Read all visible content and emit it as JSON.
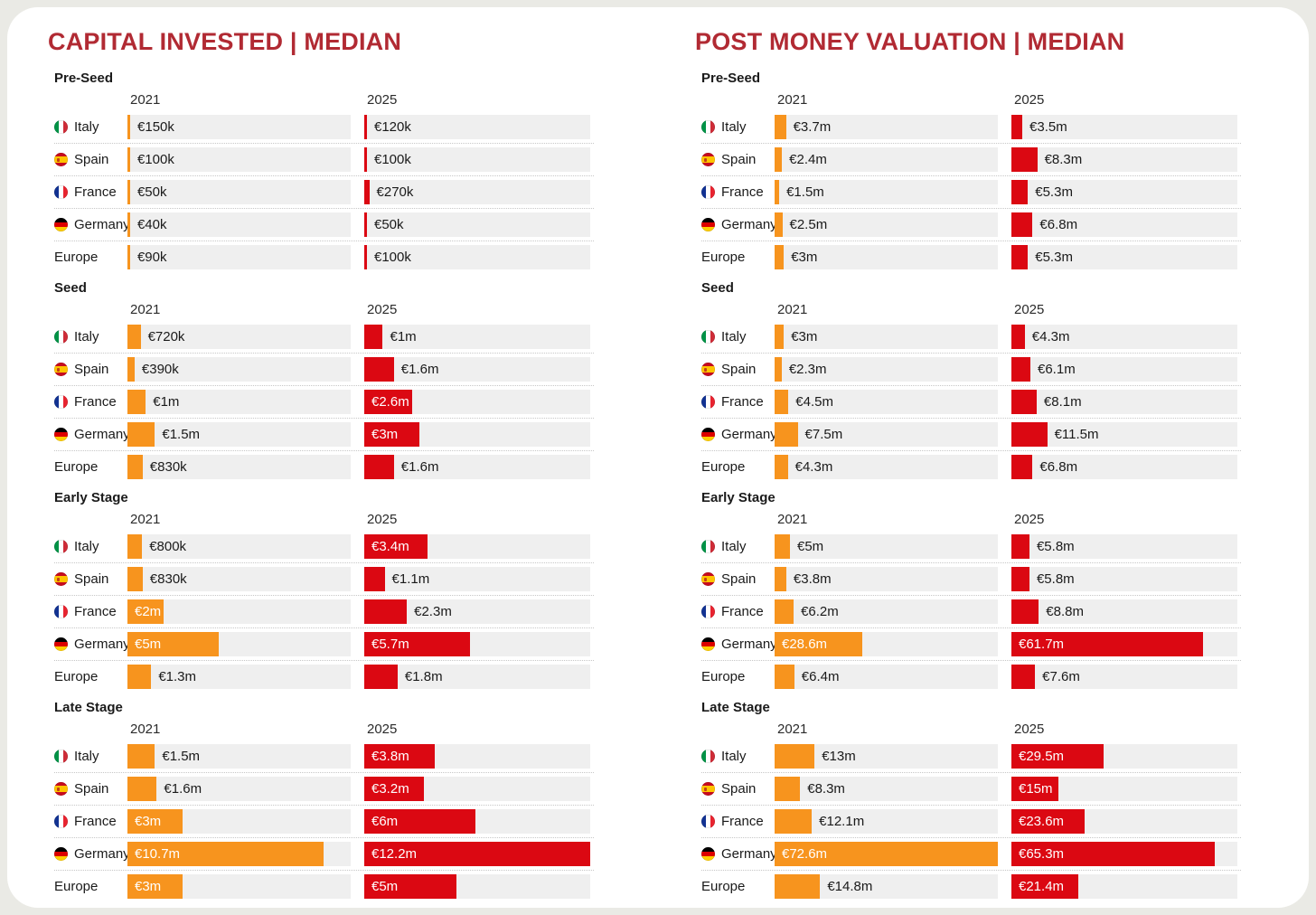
{
  "colors": {
    "accent_title": "#B12A33",
    "bar_2021": "#F7941E",
    "bar_2025": "#DB0812",
    "track": "#EFEFEF",
    "page_bg": "#EAEAE5",
    "card_bg": "#FFFFFF",
    "text": "#1A1A1A"
  },
  "chart_data": [
    {
      "type": "bar",
      "title": "CAPITAL INVESTED | MEDIAN",
      "years": [
        "2021",
        "2025"
      ],
      "axis_max_meur": 12.2,
      "legend_position": "column-headers",
      "grid": false,
      "sections": [
        {
          "name": "Pre-Seed",
          "rows": [
            {
              "country": "Italy",
              "flag": "italy",
              "y2021": {
                "label": "€150k",
                "meur": 0.15,
                "inside": false
              },
              "y2025": {
                "label": "€120k",
                "meur": 0.12,
                "inside": false
              }
            },
            {
              "country": "Spain",
              "flag": "spain",
              "y2021": {
                "label": "€100k",
                "meur": 0.1,
                "inside": false
              },
              "y2025": {
                "label": "€100k",
                "meur": 0.1,
                "inside": false
              }
            },
            {
              "country": "France",
              "flag": "france",
              "y2021": {
                "label": "€50k",
                "meur": 0.05,
                "inside": false
              },
              "y2025": {
                "label": "€270k",
                "meur": 0.27,
                "inside": false
              }
            },
            {
              "country": "Germany",
              "flag": "germany",
              "y2021": {
                "label": "€40k",
                "meur": 0.04,
                "inside": false
              },
              "y2025": {
                "label": "€50k",
                "meur": 0.05,
                "inside": false
              }
            },
            {
              "country": "Europe",
              "flag": null,
              "y2021": {
                "label": "€90k",
                "meur": 0.09,
                "inside": false
              },
              "y2025": {
                "label": "€100k",
                "meur": 0.1,
                "inside": false
              }
            }
          ]
        },
        {
          "name": "Seed",
          "rows": [
            {
              "country": "Italy",
              "flag": "italy",
              "y2021": {
                "label": "€720k",
                "meur": 0.72,
                "inside": false
              },
              "y2025": {
                "label": "€1m",
                "meur": 1.0,
                "inside": false
              }
            },
            {
              "country": "Spain",
              "flag": "spain",
              "y2021": {
                "label": "€390k",
                "meur": 0.39,
                "inside": false
              },
              "y2025": {
                "label": "€1.6m",
                "meur": 1.6,
                "inside": false
              }
            },
            {
              "country": "France",
              "flag": "france",
              "y2021": {
                "label": "€1m",
                "meur": 1.0,
                "inside": false
              },
              "y2025": {
                "label": "€2.6m",
                "meur": 2.6,
                "inside": true
              }
            },
            {
              "country": "Germany",
              "flag": "germany",
              "y2021": {
                "label": "€1.5m",
                "meur": 1.5,
                "inside": false
              },
              "y2025": {
                "label": "€3m",
                "meur": 3.0,
                "inside": true
              }
            },
            {
              "country": "Europe",
              "flag": null,
              "y2021": {
                "label": "€830k",
                "meur": 0.83,
                "inside": false
              },
              "y2025": {
                "label": "€1.6m",
                "meur": 1.6,
                "inside": false
              }
            }
          ]
        },
        {
          "name": "Early Stage",
          "rows": [
            {
              "country": "Italy",
              "flag": "italy",
              "y2021": {
                "label": "€800k",
                "meur": 0.8,
                "inside": false
              },
              "y2025": {
                "label": "€3.4m",
                "meur": 3.4,
                "inside": true
              }
            },
            {
              "country": "Spain",
              "flag": "spain",
              "y2021": {
                "label": "€830k",
                "meur": 0.83,
                "inside": false
              },
              "y2025": {
                "label": "€1.1m",
                "meur": 1.1,
                "inside": false
              }
            },
            {
              "country": "France",
              "flag": "france",
              "y2021": {
                "label": "€2m",
                "meur": 2.0,
                "inside": true
              },
              "y2025": {
                "label": "€2.3m",
                "meur": 2.3,
                "inside": false
              }
            },
            {
              "country": "Germany",
              "flag": "germany",
              "y2021": {
                "label": "€5m",
                "meur": 5.0,
                "inside": true
              },
              "y2025": {
                "label": "€5.7m",
                "meur": 5.7,
                "inside": true
              }
            },
            {
              "country": "Europe",
              "flag": null,
              "y2021": {
                "label": "€1.3m",
                "meur": 1.3,
                "inside": false
              },
              "y2025": {
                "label": "€1.8m",
                "meur": 1.8,
                "inside": false
              }
            }
          ]
        },
        {
          "name": "Late Stage",
          "rows": [
            {
              "country": "Italy",
              "flag": "italy",
              "y2021": {
                "label": "€1.5m",
                "meur": 1.5,
                "inside": false
              },
              "y2025": {
                "label": "€3.8m",
                "meur": 3.8,
                "inside": true
              }
            },
            {
              "country": "Spain",
              "flag": "spain",
              "y2021": {
                "label": "€1.6m",
                "meur": 1.6,
                "inside": false
              },
              "y2025": {
                "label": "€3.2m",
                "meur": 3.2,
                "inside": true
              }
            },
            {
              "country": "France",
              "flag": "france",
              "y2021": {
                "label": "€3m",
                "meur": 3.0,
                "inside": true
              },
              "y2025": {
                "label": "€6m",
                "meur": 6.0,
                "inside": true
              }
            },
            {
              "country": "Germany",
              "flag": "germany",
              "y2021": {
                "label": "€10.7m",
                "meur": 10.7,
                "inside": true
              },
              "y2025": {
                "label": "€12.2m",
                "meur": 12.2,
                "inside": true
              }
            },
            {
              "country": "Europe",
              "flag": null,
              "y2021": {
                "label": "€3m",
                "meur": 3.0,
                "inside": true
              },
              "y2025": {
                "label": "€5m",
                "meur": 5.0,
                "inside": true
              }
            }
          ]
        }
      ]
    },
    {
      "type": "bar",
      "title": "POST MONEY VALUATION | MEDIAN",
      "years": [
        "2021",
        "2025"
      ],
      "axis_max_meur": 72.6,
      "legend_position": "column-headers",
      "grid": false,
      "sections": [
        {
          "name": "Pre-Seed",
          "rows": [
            {
              "country": "Italy",
              "flag": "italy",
              "y2021": {
                "label": "€3.7m",
                "meur": 3.7,
                "inside": false
              },
              "y2025": {
                "label": "€3.5m",
                "meur": 3.5,
                "inside": false
              }
            },
            {
              "country": "Spain",
              "flag": "spain",
              "y2021": {
                "label": "€2.4m",
                "meur": 2.4,
                "inside": false
              },
              "y2025": {
                "label": "€8.3m",
                "meur": 8.3,
                "inside": false
              }
            },
            {
              "country": "France",
              "flag": "france",
              "y2021": {
                "label": "€1.5m",
                "meur": 1.5,
                "inside": false
              },
              "y2025": {
                "label": "€5.3m",
                "meur": 5.3,
                "inside": false
              }
            },
            {
              "country": "Germany",
              "flag": "germany",
              "y2021": {
                "label": "€2.5m",
                "meur": 2.5,
                "inside": false
              },
              "y2025": {
                "label": "€6.8m",
                "meur": 6.8,
                "inside": false
              }
            },
            {
              "country": "Europe",
              "flag": null,
              "y2021": {
                "label": "€3m",
                "meur": 3.0,
                "inside": false
              },
              "y2025": {
                "label": "€5.3m",
                "meur": 5.3,
                "inside": false
              }
            }
          ]
        },
        {
          "name": "Seed",
          "rows": [
            {
              "country": "Italy",
              "flag": "italy",
              "y2021": {
                "label": "€3m",
                "meur": 3.0,
                "inside": false
              },
              "y2025": {
                "label": "€4.3m",
                "meur": 4.3,
                "inside": false
              }
            },
            {
              "country": "Spain",
              "flag": "spain",
              "y2021": {
                "label": "€2.3m",
                "meur": 2.3,
                "inside": false
              },
              "y2025": {
                "label": "€6.1m",
                "meur": 6.1,
                "inside": false
              }
            },
            {
              "country": "France",
              "flag": "france",
              "y2021": {
                "label": "€4.5m",
                "meur": 4.5,
                "inside": false
              },
              "y2025": {
                "label": "€8.1m",
                "meur": 8.1,
                "inside": false
              }
            },
            {
              "country": "Germany",
              "flag": "germany",
              "y2021": {
                "label": "€7.5m",
                "meur": 7.5,
                "inside": false
              },
              "y2025": {
                "label": "€11.5m",
                "meur": 11.5,
                "inside": false
              }
            },
            {
              "country": "Europe",
              "flag": null,
              "y2021": {
                "label": "€4.3m",
                "meur": 4.3,
                "inside": false
              },
              "y2025": {
                "label": "€6.8m",
                "meur": 6.8,
                "inside": false
              }
            }
          ]
        },
        {
          "name": "Early Stage",
          "rows": [
            {
              "country": "Italy",
              "flag": "italy",
              "y2021": {
                "label": "€5m",
                "meur": 5.0,
                "inside": false
              },
              "y2025": {
                "label": "€5.8m",
                "meur": 5.8,
                "inside": false
              }
            },
            {
              "country": "Spain",
              "flag": "spain",
              "y2021": {
                "label": "€3.8m",
                "meur": 3.8,
                "inside": false
              },
              "y2025": {
                "label": "€5.8m",
                "meur": 5.8,
                "inside": false
              }
            },
            {
              "country": "France",
              "flag": "france",
              "y2021": {
                "label": "€6.2m",
                "meur": 6.2,
                "inside": false
              },
              "y2025": {
                "label": "€8.8m",
                "meur": 8.8,
                "inside": false
              }
            },
            {
              "country": "Germany",
              "flag": "germany",
              "y2021": {
                "label": "€28.6m",
                "meur": 28.6,
                "inside": true
              },
              "y2025": {
                "label": "€61.7m",
                "meur": 61.7,
                "inside": true
              }
            },
            {
              "country": "Europe",
              "flag": null,
              "y2021": {
                "label": "€6.4m",
                "meur": 6.4,
                "inside": false
              },
              "y2025": {
                "label": "€7.6m",
                "meur": 7.6,
                "inside": false
              }
            }
          ]
        },
        {
          "name": "Late Stage",
          "rows": [
            {
              "country": "Italy",
              "flag": "italy",
              "y2021": {
                "label": "€13m",
                "meur": 13.0,
                "inside": false
              },
              "y2025": {
                "label": "€29.5m",
                "meur": 29.5,
                "inside": true
              }
            },
            {
              "country": "Spain",
              "flag": "spain",
              "y2021": {
                "label": "€8.3m",
                "meur": 8.3,
                "inside": false
              },
              "y2025": {
                "label": "€15m",
                "meur": 15.0,
                "inside": true
              }
            },
            {
              "country": "France",
              "flag": "france",
              "y2021": {
                "label": "€12.1m",
                "meur": 12.1,
                "inside": false
              },
              "y2025": {
                "label": "€23.6m",
                "meur": 23.6,
                "inside": true
              }
            },
            {
              "country": "Germany",
              "flag": "germany",
              "y2021": {
                "label": "€72.6m",
                "meur": 72.6,
                "inside": true
              },
              "y2025": {
                "label": "€65.3m",
                "meur": 65.3,
                "inside": true
              }
            },
            {
              "country": "Europe",
              "flag": null,
              "y2021": {
                "label": "€14.8m",
                "meur": 14.8,
                "inside": false
              },
              "y2025": {
                "label": "€21.4m",
                "meur": 21.4,
                "inside": true
              }
            }
          ]
        }
      ]
    }
  ]
}
